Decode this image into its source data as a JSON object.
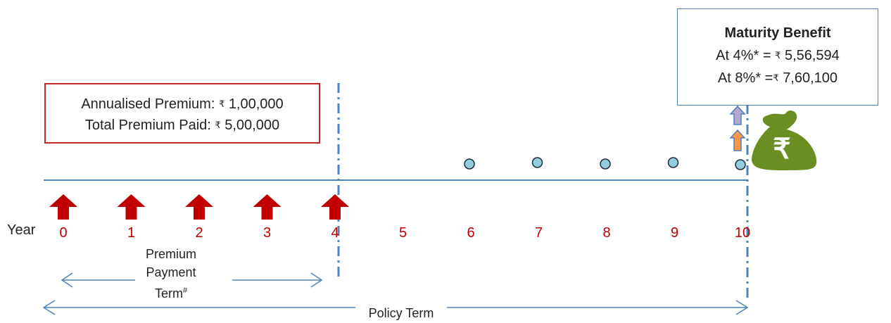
{
  "year_label": "Year",
  "years": [
    "0",
    "1",
    "2",
    "3",
    "4",
    "5",
    "6",
    "7",
    "8",
    "9",
    "10"
  ],
  "premium_box": {
    "line1_label": "Annualised Premium:",
    "line1_value": "1,00,000",
    "line2_label": "Total Premium Paid:",
    "line2_value": "5,00,000",
    "currency_symbol": "₹"
  },
  "maturity_box": {
    "title": "Maturity Benefit",
    "line1_label": "At 4%* = ",
    "line1_value": "5,56,594",
    "line2_label": "At 8%* =",
    "line2_value": "7,60,100",
    "currency_symbol": "₹"
  },
  "ppt_label": {
    "line1": "Premium",
    "line2": "Payment",
    "line3": "Term",
    "superscript": "#"
  },
  "policy_term_label": "Policy Term",
  "money_bag_symbol": "₹",
  "colors": {
    "premium_arrow": "#c00000",
    "year_number": "#c00000",
    "timeline": "#4f81bd",
    "dot_fill": "#92cddc",
    "premium_box_border": "#c0282a",
    "bag": "#6b8e23",
    "arrow_purple": "#b4a7d6",
    "arrow_orange": "#f79646"
  },
  "icons": {
    "premium_arrow": "up-arrow-icon",
    "money_bag": "money-bag-icon",
    "benefit_dot": "circle-icon"
  }
}
